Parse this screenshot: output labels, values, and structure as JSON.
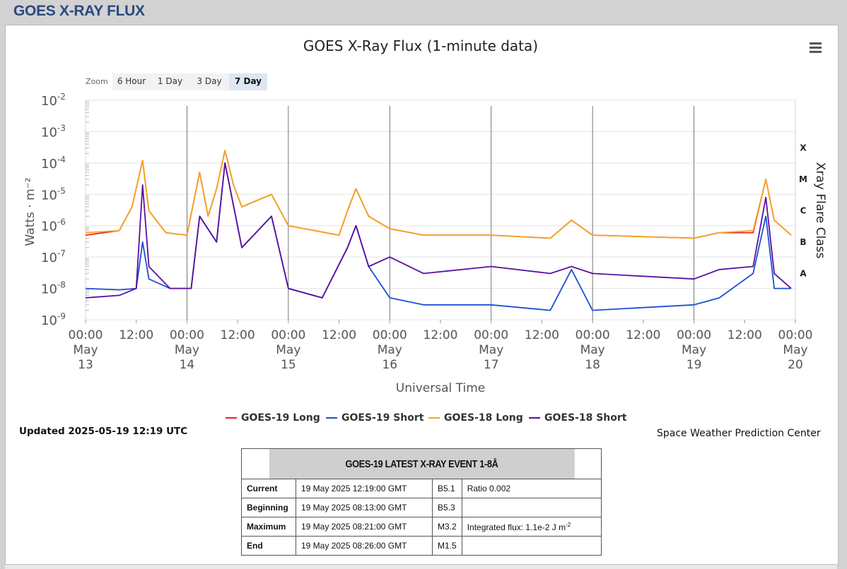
{
  "page": {
    "title": "GOES X-RAY FLUX"
  },
  "chart_header": {
    "title": "GOES X-Ray Flux (1-minute data)",
    "menu_icon": "hamburger-menu-icon"
  },
  "zoom": {
    "label": "Zoom",
    "options": [
      "6 Hour",
      "1 Day",
      "3 Day",
      "7 Day"
    ],
    "active": "7 Day"
  },
  "updated": "Updated 2025-05-19 12:19 UTC",
  "credit": "Space Weather Prediction Center",
  "event_table": {
    "title": "GOES-19 LATEST X-RAY EVENT 1-8Å",
    "rows": [
      {
        "label": "Current",
        "time": "19 May 2025 12:19:00 GMT",
        "class": "B5.1",
        "note": "Ratio 0.002"
      },
      {
        "label": "Beginning",
        "time": "19 May 2025 08:13:00 GMT",
        "class": "B5.3",
        "note": ""
      },
      {
        "label": "Maximum",
        "time": "19 May 2025 08:21:00 GMT",
        "class": "M3.2",
        "note": "Integrated flux: 1.1e-2 J m",
        "note_sup": "-2"
      },
      {
        "label": "End",
        "time": "19 May 2025 08:26:00 GMT",
        "class": "M1.5",
        "note": ""
      }
    ]
  },
  "chart_data": {
    "type": "line",
    "title": "GOES X-Ray Flux (1-minute data)",
    "xlabel": "Universal Time",
    "ylabel": "Watts · m⁻²",
    "y2label": "Xray Flare Class",
    "y_scale": "log",
    "ylim": [
      1e-09,
      0.01
    ],
    "xlim_hours_note": "May 13 00:00 to May 20 00:00",
    "x_ticks": [
      {
        "top": "00:00",
        "mid": "May",
        "bottom": "13"
      },
      {
        "top": "12:00"
      },
      {
        "top": "00:00",
        "mid": "May",
        "bottom": "14"
      },
      {
        "top": "12:00"
      },
      {
        "top": "00:00",
        "mid": "May",
        "bottom": "15"
      },
      {
        "top": "12:00"
      },
      {
        "top": "00:00",
        "mid": "May",
        "bottom": "16"
      },
      {
        "top": "12:00"
      },
      {
        "top": "00:00",
        "mid": "May",
        "bottom": "17"
      },
      {
        "top": "12:00"
      },
      {
        "top": "00:00",
        "mid": "May",
        "bottom": "18"
      },
      {
        "top": "12:00"
      },
      {
        "top": "00:00",
        "mid": "May",
        "bottom": "19"
      },
      {
        "top": "12:00"
      },
      {
        "top": "00:00",
        "mid": "May",
        "bottom": "20"
      }
    ],
    "y_ticks": [
      {
        "base": "10",
        "exp": "-2",
        "value": 0.01
      },
      {
        "base": "10",
        "exp": "-3",
        "value": 0.001
      },
      {
        "base": "10",
        "exp": "-4",
        "value": 0.0001
      },
      {
        "base": "10",
        "exp": "-5",
        "value": 1e-05
      },
      {
        "base": "10",
        "exp": "-6",
        "value": 1e-06
      },
      {
        "base": "10",
        "exp": "-7",
        "value": 1e-07
      },
      {
        "base": "10",
        "exp": "-8",
        "value": 1e-08
      },
      {
        "base": "10",
        "exp": "-9",
        "value": 1e-09
      }
    ],
    "flare_classes": [
      {
        "label": "X",
        "value": 0.000316
      },
      {
        "label": "M",
        "value": 3.16e-05
      },
      {
        "label": "C",
        "value": 3.16e-06
      },
      {
        "label": "B",
        "value": 3.16e-07
      },
      {
        "label": "A",
        "value": 3.16e-08
      }
    ],
    "grid": true,
    "legend_position": "bottom-center",
    "series": [
      {
        "name": "GOES-19 Long",
        "color": "#e8231f",
        "points": [
          [
            0,
            5e-07
          ],
          [
            8,
            7e-07
          ],
          [
            11,
            4e-06
          ],
          [
            13.5,
            0.00012
          ],
          [
            15,
            3e-06
          ],
          [
            19,
            6e-07
          ],
          [
            24,
            5e-07
          ],
          [
            27,
            5e-05
          ],
          [
            29,
            2e-06
          ],
          [
            31,
            1.5e-05
          ],
          [
            33,
            0.00025
          ],
          [
            35,
            2e-05
          ],
          [
            37,
            4e-06
          ],
          [
            44,
            1e-05
          ],
          [
            48,
            1e-06
          ],
          [
            60,
            5e-07
          ],
          [
            62,
            3e-06
          ],
          [
            64,
            1.5e-05
          ],
          [
            67,
            2e-06
          ],
          [
            72,
            8e-07
          ],
          [
            80,
            5e-07
          ],
          [
            96,
            5e-07
          ],
          [
            110,
            4e-07
          ],
          [
            115,
            1.5e-06
          ],
          [
            120,
            5e-07
          ],
          [
            144,
            4e-07
          ],
          [
            150,
            6e-07
          ],
          [
            158,
            6e-07
          ],
          [
            161,
            3e-05
          ],
          [
            163,
            1.5e-06
          ],
          [
            167,
            5e-07
          ]
        ]
      },
      {
        "name": "GOES-19 Short",
        "color": "#1c4fd6",
        "points": [
          [
            0,
            1e-08
          ],
          [
            8,
            9e-09
          ],
          [
            12,
            1e-08
          ],
          [
            13.5,
            3e-07
          ],
          [
            15,
            2e-08
          ],
          [
            20,
            1e-08
          ],
          [
            25,
            1e-08
          ],
          [
            27,
            2e-06
          ],
          [
            31,
            3e-07
          ],
          [
            33,
            0.0001
          ],
          [
            37,
            2e-07
          ],
          [
            44,
            2e-06
          ],
          [
            48,
            1e-08
          ],
          [
            56,
            5e-09
          ],
          [
            62,
            2e-07
          ],
          [
            64,
            1e-06
          ],
          [
            67,
            5e-08
          ],
          [
            72,
            5e-09
          ],
          [
            80,
            3e-09
          ],
          [
            96,
            3e-09
          ],
          [
            110,
            2e-09
          ],
          [
            115,
            4e-08
          ],
          [
            120,
            2e-09
          ],
          [
            144,
            3e-09
          ],
          [
            150,
            5e-09
          ],
          [
            158,
            3e-08
          ],
          [
            161,
            2e-06
          ],
          [
            163,
            1e-08
          ],
          [
            167,
            1e-08
          ]
        ]
      },
      {
        "name": "GOES-18 Long",
        "color": "#f5a623",
        "points": [
          [
            0,
            6e-07
          ],
          [
            8,
            7e-07
          ],
          [
            11,
            4e-06
          ],
          [
            13.5,
            0.00012
          ],
          [
            15,
            3e-06
          ],
          [
            19,
            6e-07
          ],
          [
            24,
            5e-07
          ],
          [
            27,
            5e-05
          ],
          [
            29,
            2e-06
          ],
          [
            31,
            1.5e-05
          ],
          [
            33,
            0.00025
          ],
          [
            35,
            2e-05
          ],
          [
            37,
            4e-06
          ],
          [
            44,
            1e-05
          ],
          [
            48,
            1e-06
          ],
          [
            60,
            5e-07
          ],
          [
            62,
            3e-06
          ],
          [
            64,
            1.5e-05
          ],
          [
            67,
            2e-06
          ],
          [
            72,
            8e-07
          ],
          [
            80,
            5e-07
          ],
          [
            96,
            5e-07
          ],
          [
            110,
            4e-07
          ],
          [
            115,
            1.5e-06
          ],
          [
            120,
            5e-07
          ],
          [
            144,
            4e-07
          ],
          [
            150,
            6e-07
          ],
          [
            158,
            7e-07
          ],
          [
            161,
            3e-05
          ],
          [
            163,
            1.5e-06
          ],
          [
            167,
            5e-07
          ]
        ]
      },
      {
        "name": "GOES-18 Short",
        "color": "#5b0fa0",
        "points": [
          [
            0,
            5e-09
          ],
          [
            8,
            6e-09
          ],
          [
            12,
            1e-08
          ],
          [
            13.5,
            2e-05
          ],
          [
            15,
            5e-08
          ],
          [
            20,
            1e-08
          ],
          [
            25,
            1e-08
          ],
          [
            27,
            2e-06
          ],
          [
            31,
            3e-07
          ],
          [
            33,
            0.0001
          ],
          [
            37,
            2e-07
          ],
          [
            44,
            2e-06
          ],
          [
            48,
            1e-08
          ],
          [
            56,
            5e-09
          ],
          [
            62,
            2e-07
          ],
          [
            64,
            1e-06
          ],
          [
            67,
            5e-08
          ],
          [
            72,
            1e-07
          ],
          [
            80,
            3e-08
          ],
          [
            96,
            5e-08
          ],
          [
            110,
            3e-08
          ],
          [
            115,
            5e-08
          ],
          [
            120,
            3e-08
          ],
          [
            144,
            2e-08
          ],
          [
            150,
            4e-08
          ],
          [
            158,
            5e-08
          ],
          [
            161,
            8e-06
          ],
          [
            163,
            3e-08
          ],
          [
            167,
            1e-08
          ]
        ]
      }
    ]
  }
}
